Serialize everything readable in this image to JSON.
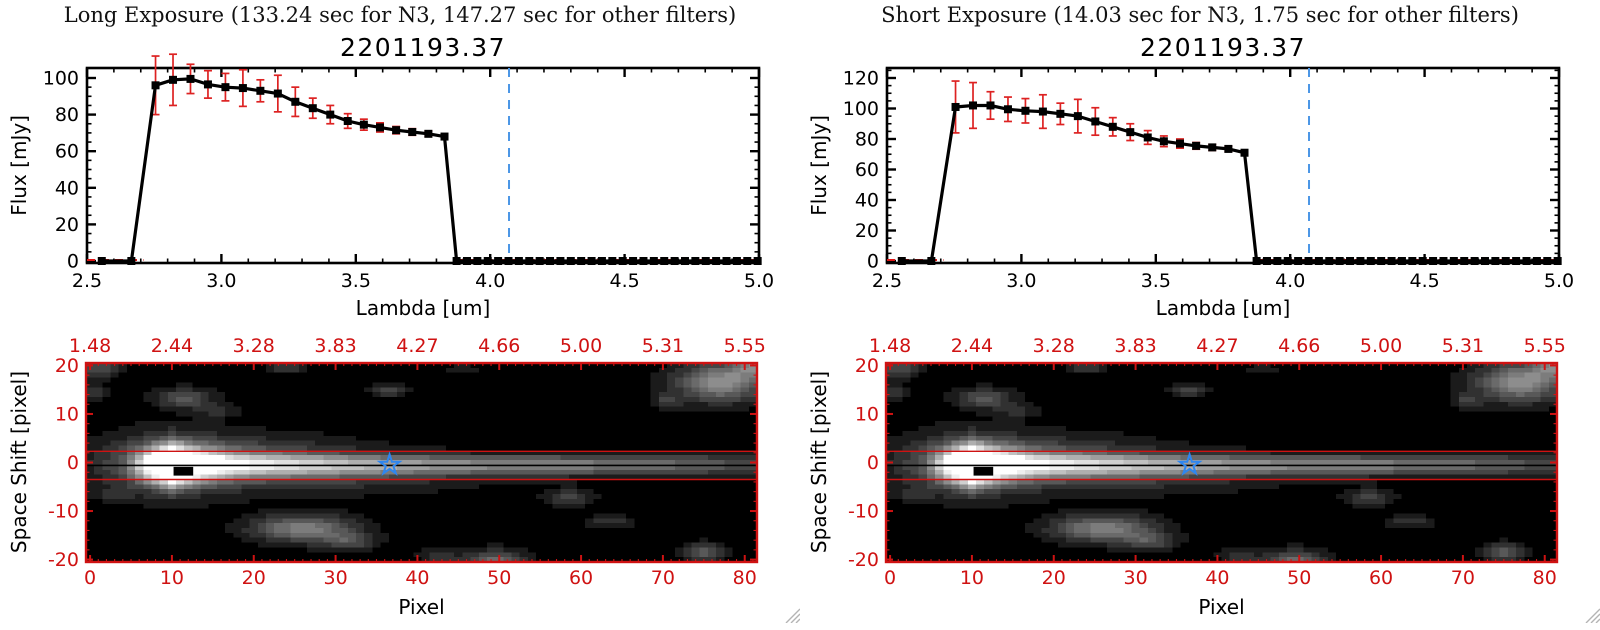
{
  "colors": {
    "background": "#ffffff",
    "axis_black": "#000000",
    "axis_red": "#cf1212",
    "error_red": "#dd2222",
    "zero_dash_red": "#dd1515",
    "blue_dashed": "#4b96e6",
    "star_blue": "#2e86f0",
    "grip_gray": "#b4b4b4"
  },
  "panels": [
    {
      "title": "Long Exposure (133.24 sec for N3, 147.27 sec for other filters)",
      "object_id": "2201193.37",
      "spectrum_ylabel": "Flux [mJy]",
      "spectrum_xlabel": "Lambda [um]",
      "image_ylabel": "Space Shift [pixel]",
      "image_xlabel": "Pixel"
    },
    {
      "title": "Short Exposure (14.03 sec for N3, 1.75 sec for other filters)",
      "object_id": "2201193.37",
      "spectrum_ylabel": "Flux [mJy]",
      "spectrum_xlabel": "Lambda [um]",
      "image_ylabel": "Space Shift [pixel]",
      "image_xlabel": "Pixel"
    }
  ],
  "chart_data": [
    {
      "type": "line",
      "panel": 0,
      "title": "2201193.37",
      "xlabel": "Lambda [um]",
      "ylabel": "Flux [mJy]",
      "xlim": [
        2.5,
        5.0
      ],
      "ylim": [
        0,
        105
      ],
      "xticks": [
        2.5,
        3.0,
        3.5,
        4.0,
        4.5,
        5.0
      ],
      "xtick_labels": [
        "2.5",
        "3.0",
        "3.5",
        "4.0",
        "4.5",
        "5.0"
      ],
      "yticks": [
        0,
        20,
        40,
        60,
        80,
        100
      ],
      "ytick_labels": [
        "0",
        "20",
        "40",
        "60",
        "80",
        "100"
      ],
      "x_minor_step": 0.1,
      "y_minor_step": 5,
      "series": [
        {
          "name": "spectrum",
          "marker": "square",
          "x": [
            2.555,
            2.665,
            2.755,
            2.82,
            2.885,
            2.95,
            3.015,
            3.08,
            3.145,
            3.21,
            3.275,
            3.34,
            3.405,
            3.47,
            3.53,
            3.59,
            3.65,
            3.71,
            3.77,
            3.83
          ],
          "y": [
            0,
            0,
            96,
            99,
            99.5,
            96.5,
            95,
            94.5,
            93,
            91.5,
            87,
            83.5,
            80,
            76.5,
            74.5,
            73,
            71.5,
            70.5,
            69.5,
            68
          ],
          "yerr": [
            0.3,
            0.3,
            16,
            14,
            8,
            7.5,
            7.5,
            10,
            6,
            10,
            8,
            5.5,
            5,
            4,
            3,
            2.5,
            2,
            1.8,
            1.5,
            1.2
          ]
        }
      ],
      "zero_tail": {
        "x_start": 3.875,
        "x_end": 4.995,
        "points": 30,
        "flux": 0
      },
      "red_dashed_zero_segments": [
        [
          2.5,
          2.71
        ],
        [
          3.875,
          5.0
        ]
      ],
      "blue_dashed_vline": 4.07
    },
    {
      "type": "line",
      "panel": 1,
      "title": "2201193.37",
      "xlabel": "Lambda [um]",
      "ylabel": "Flux [mJy]",
      "xlim": [
        2.5,
        5.0
      ],
      "ylim": [
        0,
        126
      ],
      "xticks": [
        2.5,
        3.0,
        3.5,
        4.0,
        4.5,
        5.0
      ],
      "xtick_labels": [
        "2.5",
        "3.0",
        "3.5",
        "4.0",
        "4.5",
        "5.0"
      ],
      "yticks": [
        0,
        20,
        40,
        60,
        80,
        100,
        120
      ],
      "ytick_labels": [
        "0",
        "20",
        "40",
        "60",
        "80",
        "100",
        "120"
      ],
      "x_minor_step": 0.1,
      "y_minor_step": 5,
      "series": [
        {
          "name": "spectrum",
          "marker": "square",
          "x": [
            2.555,
            2.665,
            2.755,
            2.82,
            2.885,
            2.95,
            3.015,
            3.08,
            3.145,
            3.21,
            3.275,
            3.34,
            3.405,
            3.47,
            3.53,
            3.59,
            3.65,
            3.71,
            3.77,
            3.83
          ],
          "y": [
            0,
            0,
            101,
            102,
            102,
            99.5,
            98.5,
            98,
            96.5,
            95,
            91.5,
            88,
            84.5,
            81,
            78.5,
            77,
            75.5,
            74.5,
            73.5,
            71
          ],
          "yerr": [
            0.3,
            0.3,
            17,
            15,
            9,
            8,
            8,
            11,
            7,
            11,
            9,
            6,
            5.5,
            4.5,
            3.5,
            3,
            2.2,
            2,
            1.8,
            1.4
          ]
        }
      ],
      "zero_tail": {
        "x_start": 3.875,
        "x_end": 4.995,
        "points": 30,
        "flux": 0
      },
      "red_dashed_zero_segments": [
        [
          2.5,
          2.71
        ],
        [
          3.875,
          5.0
        ]
      ],
      "blue_dashed_vline": 4.07
    },
    {
      "type": "heatmap",
      "shown_in_panels": [
        0,
        1
      ],
      "xlabel": "Pixel",
      "ylabel": "Space Shift [pixel]",
      "xlim": [
        0,
        82
      ],
      "ylim": [
        -20.5,
        20.5
      ],
      "xticks": [
        0,
        10,
        20,
        30,
        40,
        50,
        60,
        70,
        80
      ],
      "xtick_labels": [
        "0",
        "10",
        "20",
        "30",
        "40",
        "50",
        "60",
        "70",
        "80"
      ],
      "yticks": [
        20,
        10,
        0,
        -10,
        -20
      ],
      "ytick_labels": [
        "20",
        "10",
        "0",
        "-10",
        "-20"
      ],
      "top_axis_labels": [
        "1.48",
        "2.44",
        "3.28",
        "3.83",
        "4.27",
        "4.66",
        "5.00",
        "5.31",
        "5.55"
      ],
      "top_axis_positions": [
        0,
        10,
        20,
        30,
        40,
        50,
        60,
        70,
        80
      ],
      "grid_cols": 82,
      "grid_rows": 41,
      "gray_levels": 14,
      "streak": {
        "y_center": -0.5,
        "amp_profile": [
          [
            0,
            0.02
          ],
          [
            4,
            0.05
          ],
          [
            6,
            0.45
          ],
          [
            8,
            1.1
          ],
          [
            10,
            1.7
          ],
          [
            12,
            1.25
          ],
          [
            14,
            0.95
          ],
          [
            17,
            0.75
          ],
          [
            20,
            0.66
          ],
          [
            25,
            0.6
          ],
          [
            30,
            0.56
          ],
          [
            35,
            0.53
          ],
          [
            40,
            0.5
          ],
          [
            45,
            0.47
          ],
          [
            50,
            0.45
          ],
          [
            55,
            0.43
          ],
          [
            60,
            0.42
          ],
          [
            64,
            0.4
          ],
          [
            68,
            0.37
          ],
          [
            72,
            0.33
          ],
          [
            76,
            0.28
          ],
          [
            79,
            0.24
          ],
          [
            81,
            0.2
          ]
        ],
        "sigma_profile": [
          [
            0,
            1.4
          ],
          [
            7,
            2.2
          ],
          [
            10,
            2.6
          ],
          [
            13,
            2.1
          ],
          [
            18,
            1.6
          ],
          [
            30,
            1.45
          ],
          [
            50,
            1.4
          ],
          [
            70,
            1.5
          ],
          [
            81,
            1.6
          ]
        ]
      },
      "halos": [
        [
          10,
          -0.5,
          5.5,
          4.2,
          0.32
        ],
        [
          18,
          1.5,
          9,
          2.8,
          0.15
        ],
        [
          30,
          -3,
          14,
          2.2,
          0.1
        ],
        [
          24,
          -1,
          10,
          3.4,
          0.12
        ]
      ],
      "blobs": [
        [
          1,
          19.5,
          1.6,
          1.4,
          0.26
        ],
        [
          0.5,
          14.5,
          1.0,
          1.0,
          0.16
        ],
        [
          11.5,
          13.2,
          2.3,
          1.4,
          0.3
        ],
        [
          15.5,
          10.8,
          1.6,
          1.0,
          0.14
        ],
        [
          24,
          19.8,
          1.6,
          1.0,
          0.18
        ],
        [
          36.5,
          14.8,
          1.4,
          0.9,
          0.24
        ],
        [
          45.5,
          19.2,
          1.1,
          0.8,
          0.12
        ],
        [
          77,
          16.5,
          3.6,
          2.6,
          0.52
        ],
        [
          81.5,
          20.5,
          2.0,
          2.0,
          0.42
        ],
        [
          70.5,
          12.6,
          1.3,
          1.0,
          0.18
        ],
        [
          58.5,
          -7.2,
          1.9,
          1.1,
          0.2
        ],
        [
          26,
          -13.6,
          4.2,
          1.9,
          0.44
        ],
        [
          31.5,
          -16.2,
          2.2,
          1.3,
          0.24
        ],
        [
          42.5,
          -19.2,
          1.6,
          1.0,
          0.16
        ],
        [
          49.5,
          -20.3,
          2.6,
          1.6,
          0.34
        ],
        [
          63.5,
          -12.2,
          1.9,
          0.9,
          0.16
        ],
        [
          75,
          -18.6,
          1.6,
          1.3,
          0.28
        ],
        [
          3,
          -6.5,
          1.6,
          1.0,
          0.1
        ]
      ],
      "aperture_lines_y": [
        2.3,
        -3.5
      ],
      "trace_line_y": -0.6,
      "star_marker": {
        "x": 36.6,
        "y": -0.5
      },
      "saturated_marker": {
        "x0": 10.2,
        "x1": 12.6,
        "y0": -2.7,
        "y1": -0.9
      }
    }
  ]
}
